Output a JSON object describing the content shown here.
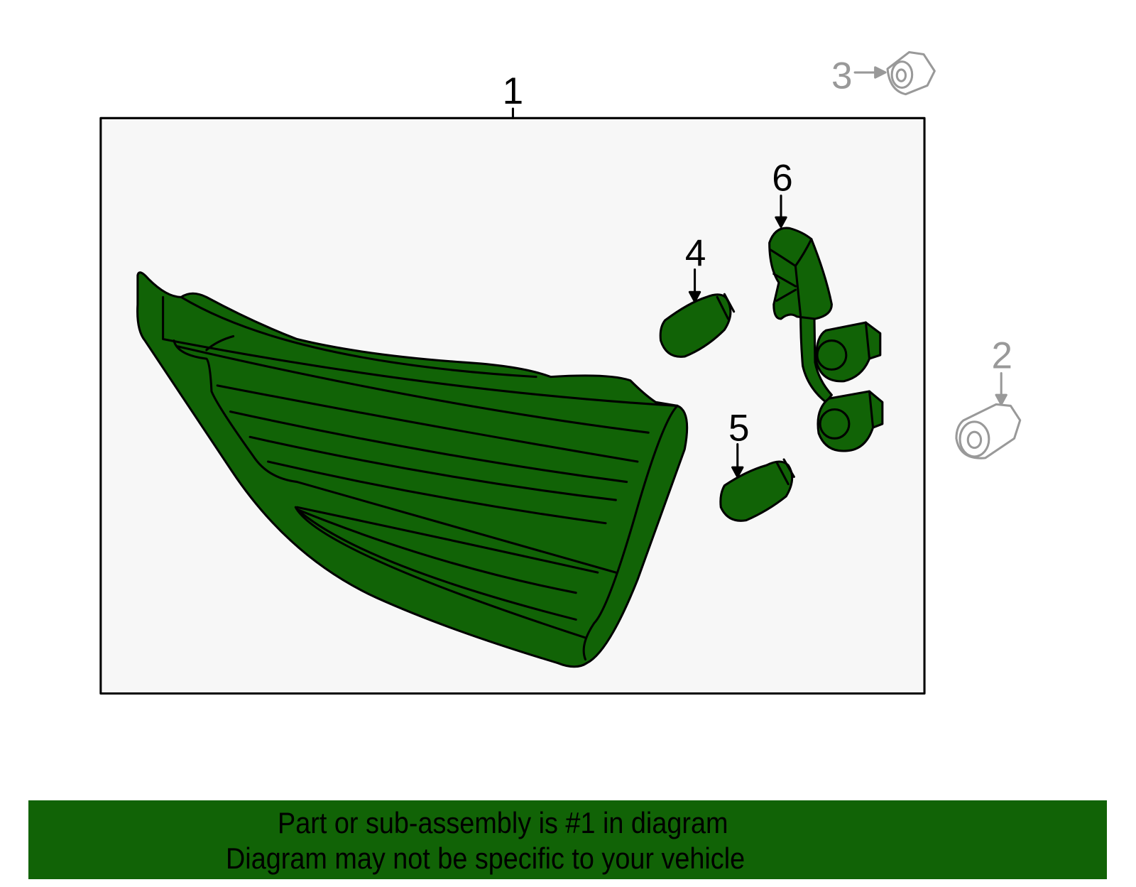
{
  "diagram": {
    "callouts": [
      {
        "number": "1",
        "part": "tail-lamp-assembly",
        "highlighted": true
      },
      {
        "number": "2",
        "part": "nut",
        "highlighted": false
      },
      {
        "number": "3",
        "part": "nut",
        "highlighted": false
      },
      {
        "number": "4",
        "part": "bulb",
        "highlighted": true
      },
      {
        "number": "5",
        "part": "bulb",
        "highlighted": true
      },
      {
        "number": "6",
        "part": "socket-harness",
        "highlighted": true
      }
    ],
    "colors": {
      "highlight_fill": "#116306",
      "outline": "#000000",
      "muted": "#999999",
      "box_fill": "#f7f7f7"
    }
  },
  "banner": {
    "line1": "Part or sub-assembly is #1 in diagram",
    "line2": "Diagram may not be specific to your vehicle"
  }
}
